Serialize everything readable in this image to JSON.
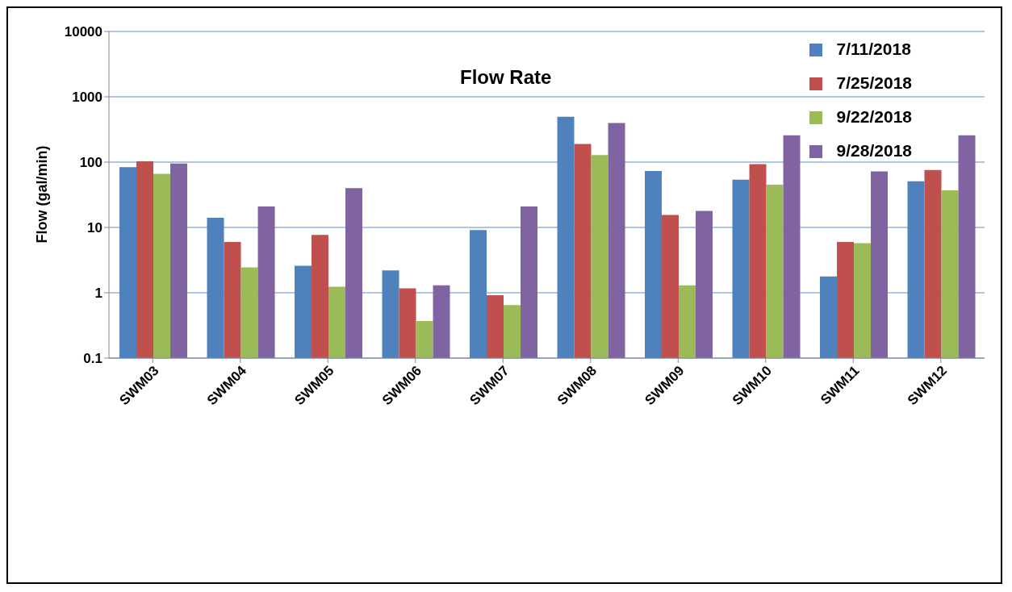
{
  "chart_data": {
    "type": "bar",
    "title": "Flow Rate",
    "ylabel": "Flow (gal/min)",
    "categories": [
      "SWM03",
      "SWM04",
      "SWM05",
      "SWM06",
      "SWM07",
      "SWM08",
      "SWM09",
      "SWM10",
      "SWM11",
      "SWM12"
    ],
    "series": [
      {
        "name": "7/11/2018",
        "color": "#4f81bd",
        "values": [
          84,
          14.1,
          2.6,
          2.2,
          9.1,
          494,
          73,
          54,
          1.78,
          51
        ]
      },
      {
        "name": "7/25/2018",
        "color": "#c0504d",
        "values": [
          103,
          6.0,
          7.7,
          1.17,
          0.92,
          190,
          15.5,
          93,
          6.0,
          76
        ]
      },
      {
        "name": "9/22/2018",
        "color": "#9bbb59",
        "values": [
          66,
          2.45,
          1.24,
          0.37,
          0.65,
          128,
          1.3,
          45,
          5.75,
          37
        ]
      },
      {
        "name": "9/28/2018",
        "color": "#8064a2",
        "values": [
          95,
          21,
          40,
          1.3,
          21,
          397,
          17.9,
          257,
          72,
          257
        ]
      }
    ],
    "log": "y",
    "ylim": [
      0.1,
      10000
    ],
    "yticks": [
      0.1,
      1,
      10,
      100,
      1000,
      10000
    ],
    "grid": "y",
    "legend": "top right"
  }
}
